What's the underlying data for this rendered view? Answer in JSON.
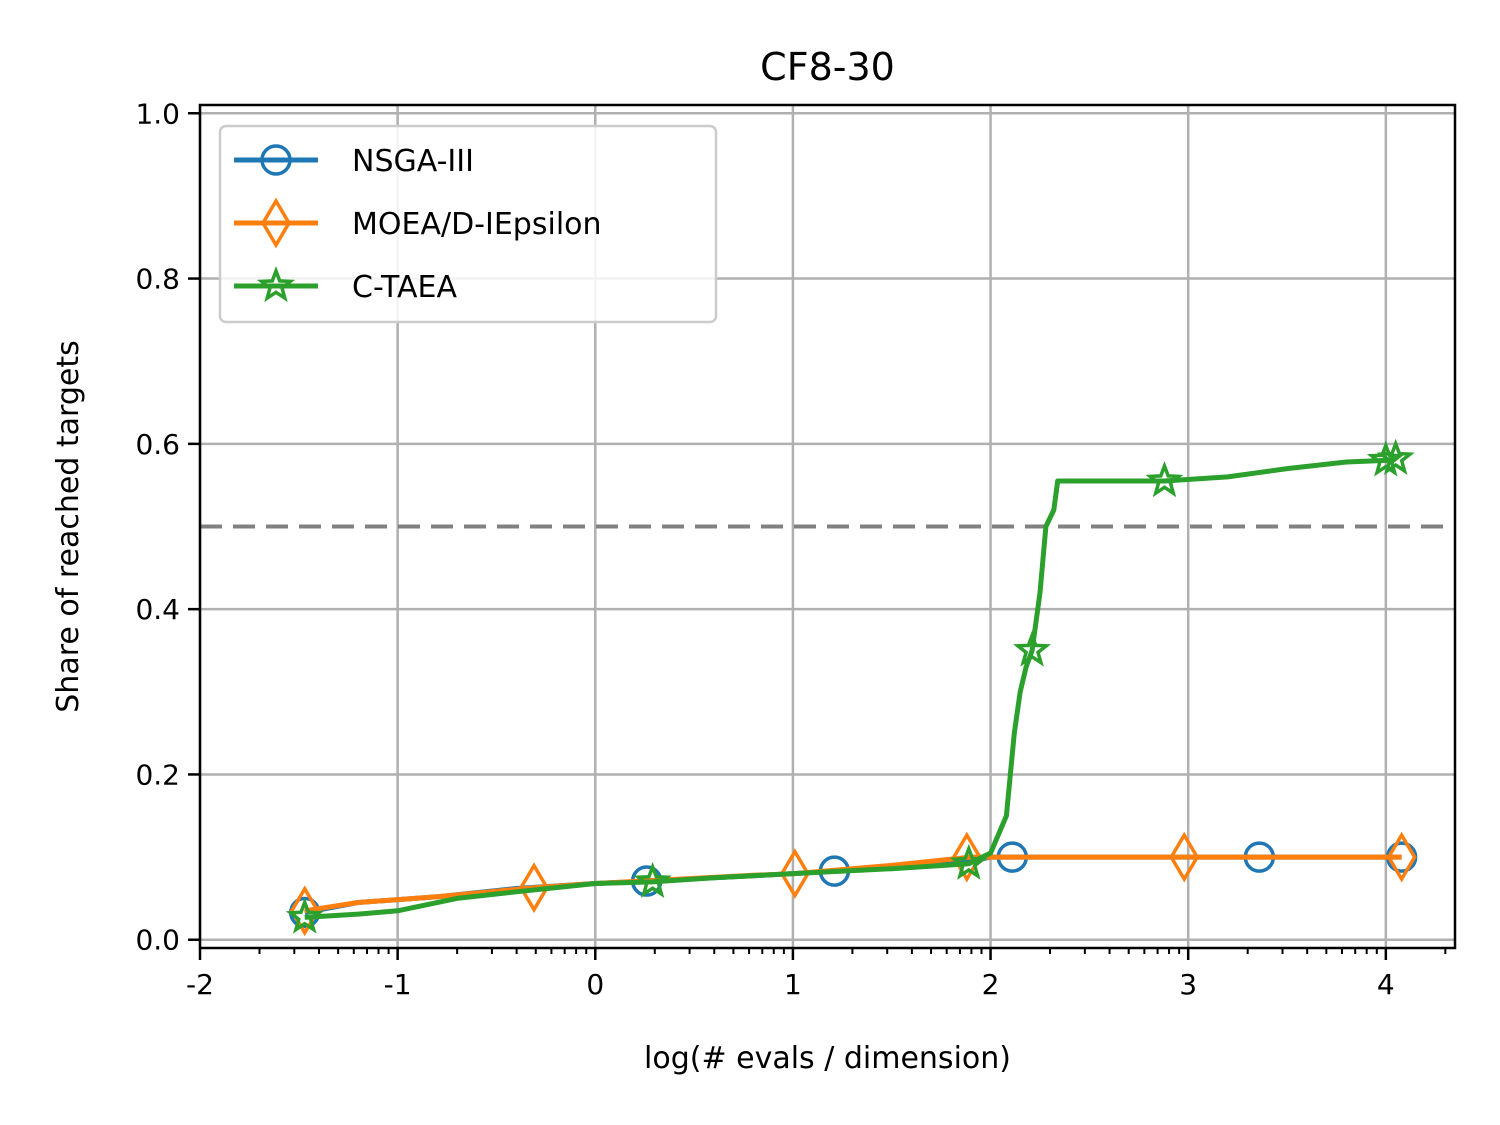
{
  "chart_data": {
    "type": "line",
    "title": "CF8-30",
    "xlabel": "log(# evals / dimension)",
    "ylabel": "Share of reached targets",
    "xlim": [
      -2,
      4.35
    ],
    "ylim": [
      -0.01,
      1.01
    ],
    "x_ticks": [
      -2,
      -1,
      0,
      1,
      2,
      3,
      4
    ],
    "x_tick_labels": [
      "-2",
      "-1",
      "0",
      "1",
      "2",
      "3",
      "4"
    ],
    "y_ticks": [
      0.0,
      0.2,
      0.4,
      0.6,
      0.8,
      1.0
    ],
    "y_tick_labels": [
      "0.0",
      "0.2",
      "0.4",
      "0.6",
      "0.8",
      "1.0"
    ],
    "grid": true,
    "legend_position": "top-left",
    "reference_line": {
      "y": 0.5,
      "style": "dashed",
      "color": "#808080"
    },
    "series": [
      {
        "name": "NSGA-III",
        "color": "#1f77b4",
        "marker": "circle",
        "x": [
          -1.47,
          -1.2,
          -0.8,
          -0.4,
          0.0,
          0.26,
          0.6,
          1.0,
          1.21,
          1.6,
          1.9,
          2.0,
          2.11,
          2.5,
          3.0,
          3.36,
          4.0,
          4.08
        ],
        "y": [
          0.033,
          0.045,
          0.052,
          0.062,
          0.068,
          0.071,
          0.075,
          0.08,
          0.083,
          0.088,
          0.095,
          0.1,
          0.1,
          0.1,
          0.1,
          0.1,
          0.1,
          0.1
        ],
        "marker_x": [
          -1.47,
          0.26,
          1.21,
          2.11,
          3.36,
          4.08
        ],
        "marker_y": [
          0.033,
          0.071,
          0.083,
          0.1,
          0.1,
          0.1
        ]
      },
      {
        "name": "MOEA/D-IEpsilon",
        "color": "#ff7f0e",
        "marker": "diamond",
        "x": [
          -1.47,
          -1.2,
          -0.8,
          -0.31,
          0.0,
          0.4,
          0.8,
          1.01,
          1.5,
          1.9,
          2.0,
          2.5,
          2.98,
          3.5,
          4.08
        ],
        "y": [
          0.035,
          0.045,
          0.052,
          0.063,
          0.068,
          0.073,
          0.078,
          0.08,
          0.09,
          0.1,
          0.1,
          0.1,
          0.1,
          0.1,
          0.1
        ],
        "marker_x": [
          -1.47,
          -0.31,
          1.01,
          1.88,
          2.98,
          4.08
        ],
        "marker_y": [
          0.035,
          0.063,
          0.08,
          0.1,
          0.1,
          0.1
        ]
      },
      {
        "name": "C-TAEA",
        "color": "#2ca02c",
        "marker": "star",
        "x": [
          -1.47,
          -1.2,
          -1.0,
          -0.7,
          -0.4,
          0.0,
          0.29,
          0.6,
          1.0,
          1.5,
          1.89,
          2.0,
          2.08,
          2.12,
          2.15,
          2.18,
          2.21,
          2.25,
          2.28,
          2.32,
          2.34,
          2.6,
          2.88,
          3.2,
          3.5,
          3.8,
          4.0,
          4.05
        ],
        "y": [
          0.027,
          0.031,
          0.035,
          0.05,
          0.058,
          0.068,
          0.07,
          0.075,
          0.08,
          0.086,
          0.092,
          0.105,
          0.15,
          0.25,
          0.3,
          0.33,
          0.35,
          0.42,
          0.5,
          0.52,
          0.555,
          0.555,
          0.555,
          0.56,
          0.57,
          0.578,
          0.58,
          0.582
        ],
        "marker_x": [
          -1.47,
          0.29,
          1.89,
          2.21,
          2.88,
          4.0,
          4.05
        ],
        "marker_y": [
          0.027,
          0.07,
          0.092,
          0.35,
          0.555,
          0.58,
          0.582
        ]
      }
    ]
  }
}
